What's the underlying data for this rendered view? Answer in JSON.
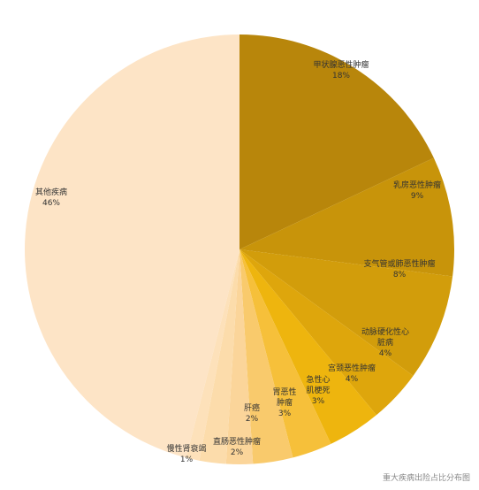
{
  "chart_data": {
    "type": "pie",
    "categories": [
      "甲状腺恶性肿瘤",
      "乳房恶性肿瘤",
      "支气管或肺恶性肿瘤",
      "动脉硬化性心脏病",
      "宫颈恶性肿瘤",
      "急性心肌梗死",
      "胃恶性肿瘤",
      "肝癌",
      "直肠恶性肿瘤",
      "慢性肾衰竭",
      "其他疾病"
    ],
    "values": [
      18,
      9,
      8,
      4,
      4,
      3,
      3,
      2,
      2,
      1,
      46
    ],
    "value_labels": [
      "18%",
      "9%",
      "8%",
      "4%",
      "4%",
      "3%",
      "3%",
      "2%",
      "2%",
      "1%",
      "46%"
    ],
    "colors": [
      "#b8860b",
      "#c8940a",
      "#d29d0b",
      "#dea60c",
      "#eeb50e",
      "#f6c03a",
      "#f9ca6c",
      "#fbd59a",
      "#fcdcab",
      "#fde1ba",
      "#fde4c6"
    ],
    "caption": "重大疾病出险占比分布图"
  }
}
